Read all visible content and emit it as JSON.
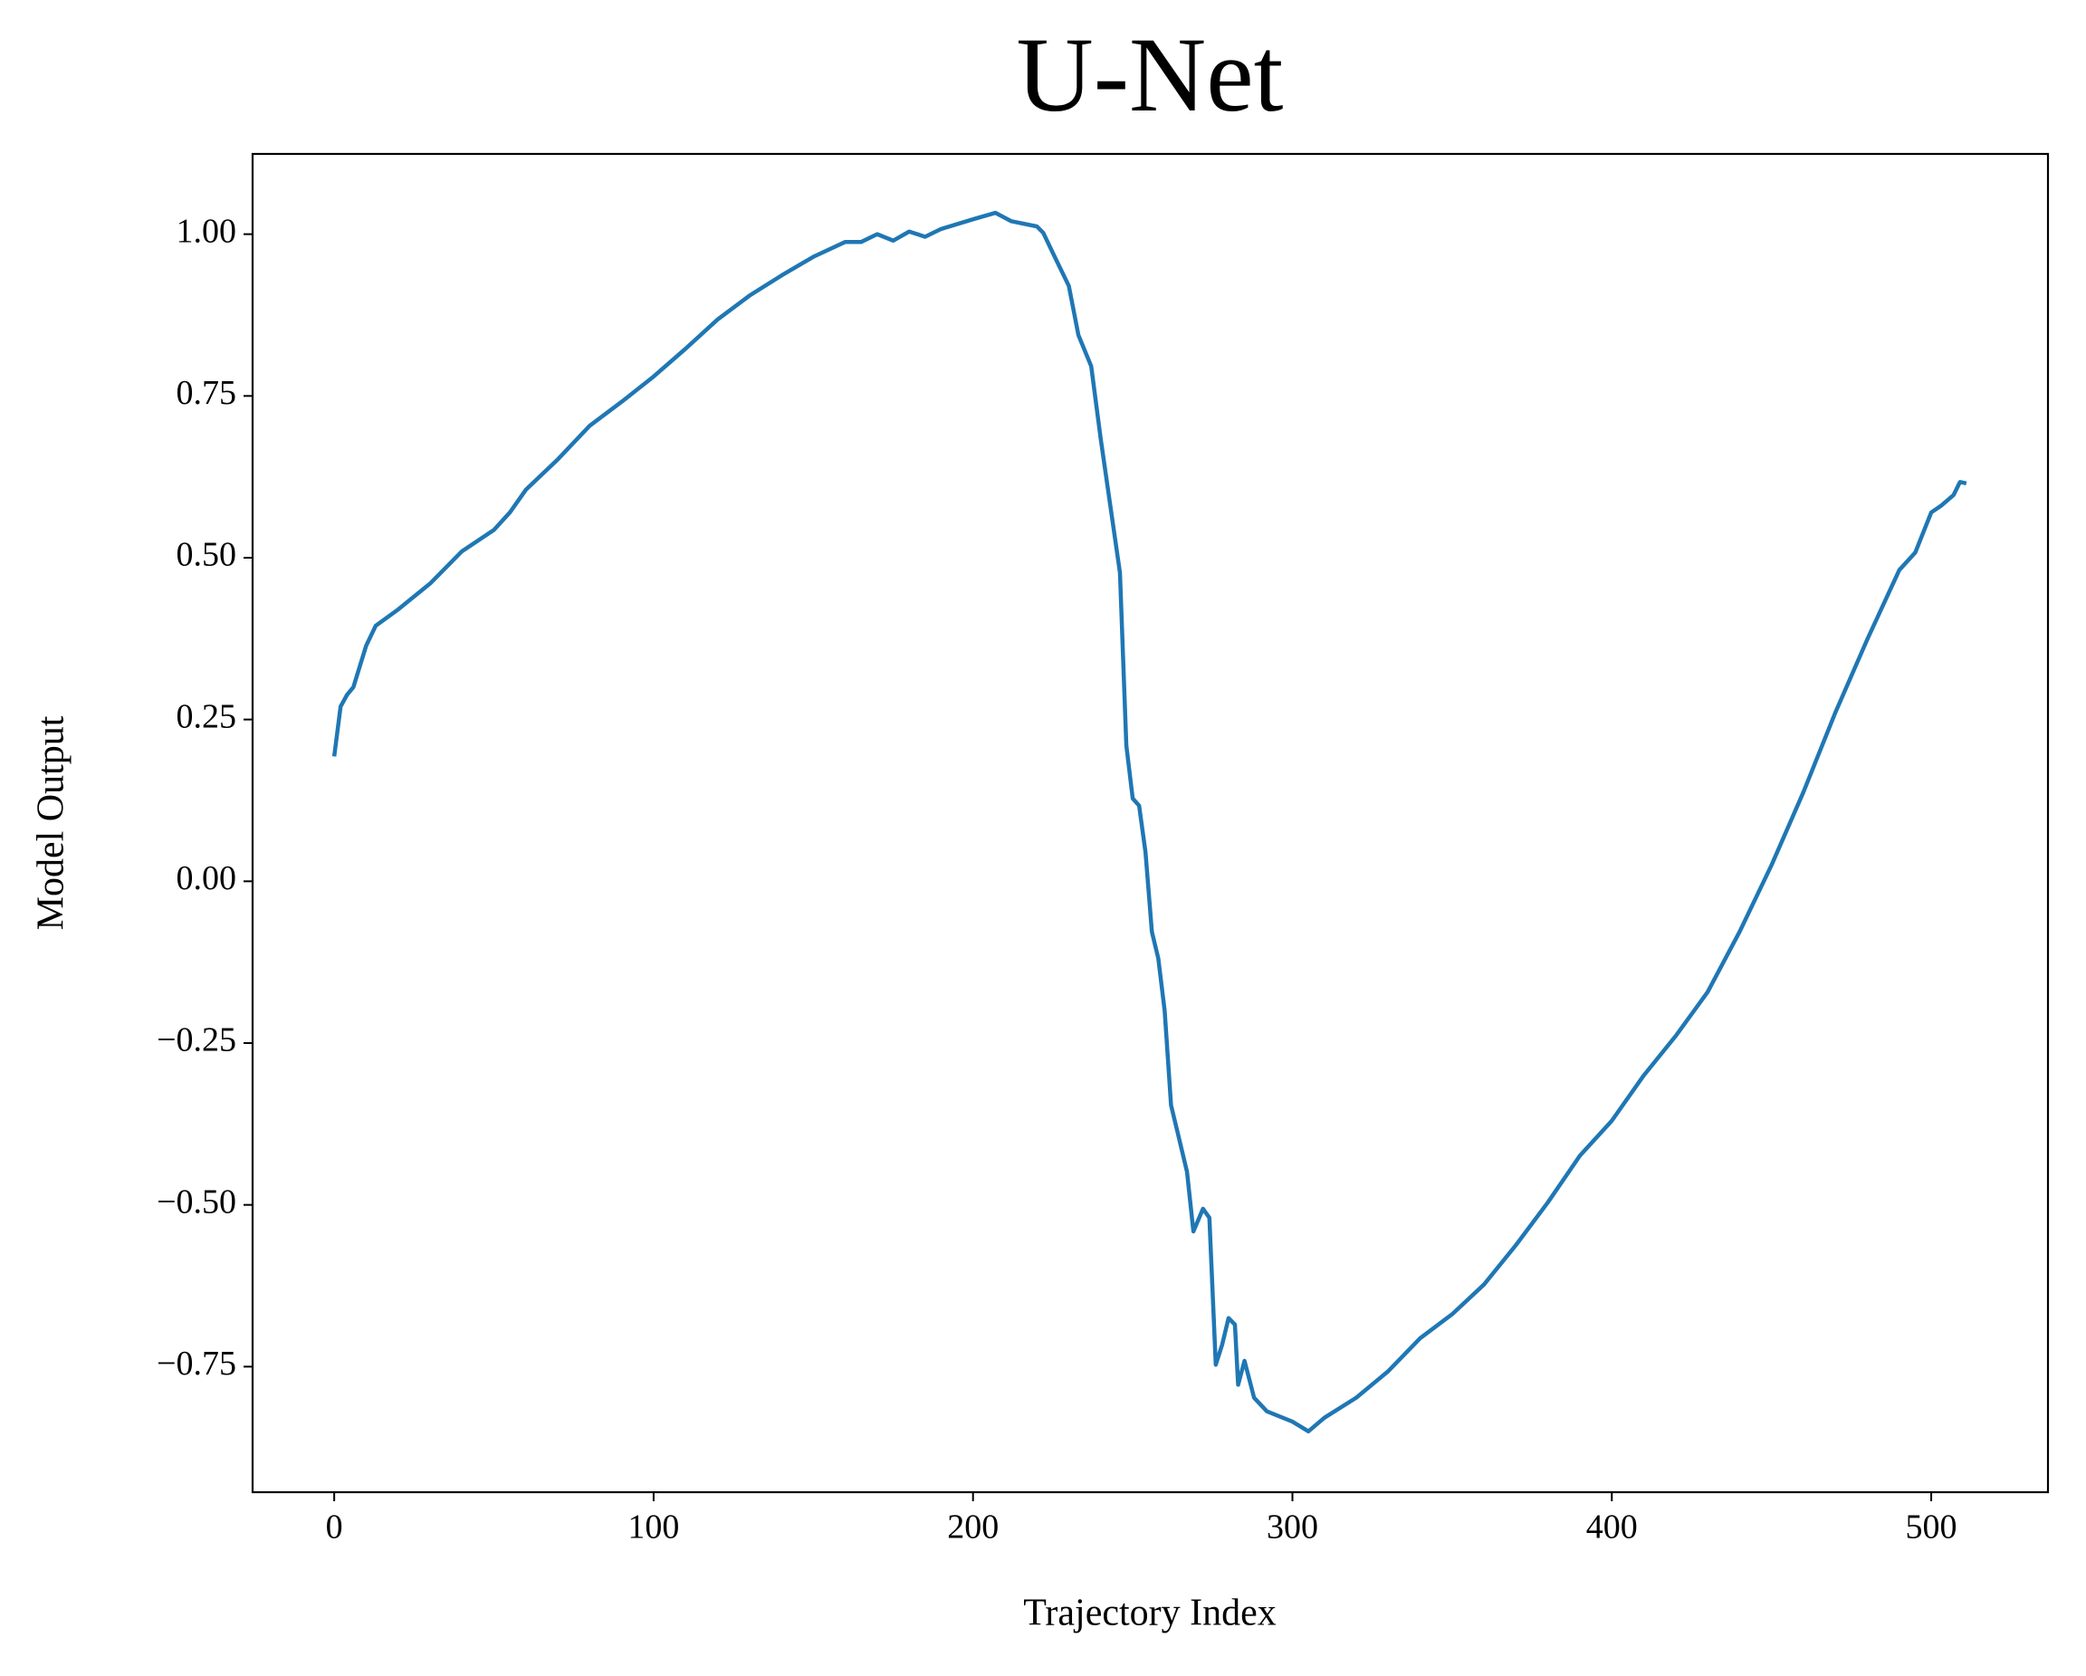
{
  "chart_data": {
    "type": "line",
    "title": "U-Net",
    "xlabel": "Trajectory Index",
    "ylabel": "Model Output",
    "x": [
      0,
      2,
      4,
      6,
      10,
      13,
      20,
      30,
      40,
      50,
      55,
      60,
      70,
      80,
      90,
      100,
      110,
      120,
      130,
      140,
      150,
      160,
      165,
      170,
      175,
      180,
      185,
      190,
      200,
      207,
      212,
      220,
      222,
      225,
      230,
      233,
      237,
      240,
      243,
      246,
      248,
      250,
      252,
      254,
      256,
      258,
      260,
      262,
      264,
      267,
      269,
      272,
      274,
      276,
      278,
      280,
      282,
      283,
      285,
      288,
      292,
      300,
      305,
      310,
      320,
      330,
      340,
      350,
      360,
      370,
      380,
      390,
      400,
      410,
      420,
      430,
      440,
      450,
      460,
      470,
      480,
      490,
      495,
      500,
      503,
      507,
      509,
      511
    ],
    "series": [
      {
        "name": "U-Net",
        "color": "#1f77b4",
        "values": [
          0.193,
          0.27,
          0.288,
          0.3,
          0.364,
          0.395,
          0.42,
          0.46,
          0.51,
          0.543,
          0.57,
          0.605,
          0.652,
          0.704,
          0.741,
          0.78,
          0.823,
          0.868,
          0.905,
          0.936,
          0.965,
          0.988,
          0.988,
          1.0,
          0.99,
          1.004,
          0.996,
          1.008,
          1.023,
          1.033,
          1.02,
          1.012,
          1.002,
          0.971,
          0.92,
          0.844,
          0.796,
          0.683,
          0.58,
          0.477,
          0.21,
          0.128,
          0.117,
          0.045,
          -0.078,
          -0.119,
          -0.2,
          -0.346,
          -0.387,
          -0.449,
          -0.541,
          -0.506,
          -0.52,
          -0.747,
          -0.716,
          -0.675,
          -0.685,
          -0.778,
          -0.741,
          -0.798,
          -0.819,
          -0.835,
          -0.85,
          -0.829,
          -0.798,
          -0.757,
          -0.706,
          -0.669,
          -0.623,
          -0.562,
          -0.496,
          -0.424,
          -0.37,
          -0.3,
          -0.239,
          -0.171,
          -0.078,
          0.025,
          0.138,
          0.261,
          0.374,
          0.481,
          0.508,
          0.57,
          0.58,
          0.597,
          0.617,
          0.615
        ]
      }
    ],
    "xlim": [
      -25.55,
      536.55
    ],
    "xticks": [
      0,
      100,
      200,
      300,
      400,
      500
    ],
    "ylim": [
      -0.944,
      1.124
    ],
    "yticks": [
      {
        "value": -0.75,
        "label": "−0.75"
      },
      {
        "value": -0.5,
        "label": "−0.50"
      },
      {
        "value": -0.25,
        "label": "−0.25"
      },
      {
        "value": 0,
        "label": "0.00"
      },
      0.25,
      {
        "value": 0.5,
        "label": "0.50"
      },
      0.75,
      {
        "value": 1,
        "label": "1.00"
      }
    ],
    "grid": false
  }
}
